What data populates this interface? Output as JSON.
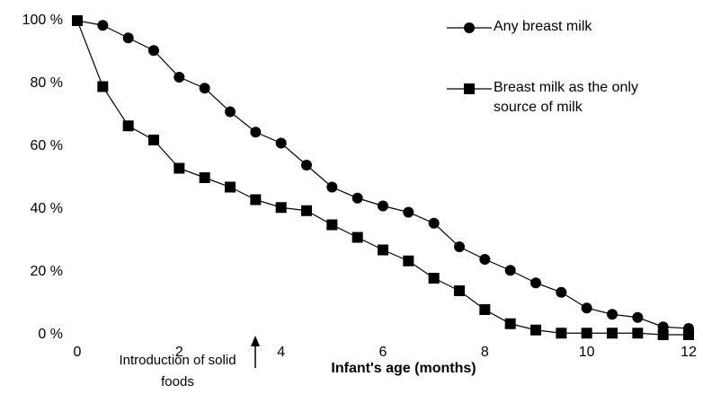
{
  "chart_data": {
    "type": "line",
    "x": [
      0,
      0.5,
      1,
      1.5,
      2,
      2.5,
      3,
      3.5,
      4,
      4.5,
      5,
      5.5,
      6,
      6.5,
      7,
      7.5,
      8,
      8.5,
      9,
      9.5,
      10,
      10.5,
      11,
      11.5,
      12
    ],
    "series": [
      {
        "name": "Any breast milk",
        "color": "#000000",
        "marker": "circle",
        "values": [
          100,
          98.5,
          94.5,
          90.5,
          82,
          78.5,
          71,
          64.5,
          61,
          54,
          47,
          43.5,
          41,
          39,
          35.5,
          28,
          24,
          20.5,
          16.5,
          13.5,
          8.5,
          6.5,
          5.5,
          2.5,
          2
        ]
      },
      {
        "name": "Breast milk as the only source of milk",
        "color": "#000000",
        "marker": "square",
        "values": [
          100,
          79,
          66.5,
          62,
          53,
          50,
          47,
          43,
          40.5,
          39.5,
          35,
          31,
          27,
          23.5,
          18,
          14,
          8,
          3.5,
          1.5,
          0.5,
          0.5,
          0.5,
          0.5,
          0,
          0
        ]
      }
    ],
    "xlim": [
      0,
      12
    ],
    "xticks": [
      0,
      2,
      4,
      6,
      8,
      10,
      12
    ],
    "ylim": [
      0,
      100
    ],
    "yticks": [
      {
        "value": 0,
        "label": "0 %"
      },
      {
        "value": 20,
        "label": "20 %"
      },
      {
        "value": 40,
        "label": "40 %"
      },
      {
        "value": 60,
        "label": "60 %"
      },
      {
        "value": 80,
        "label": "80 %"
      },
      {
        "value": 100,
        "label": "100 %"
      }
    ],
    "xlabel": "Infant's age (months)",
    "annotation": "Introduction of solid foods",
    "grid": false
  }
}
